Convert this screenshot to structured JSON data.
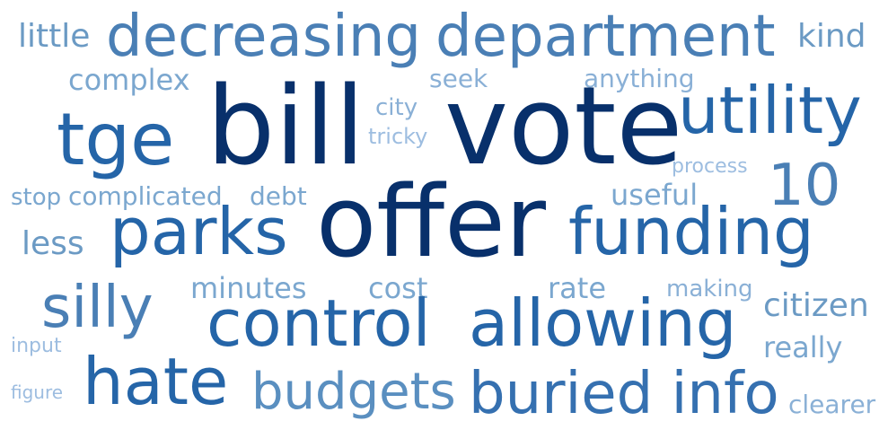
{
  "chart_data": {
    "type": "wordcloud",
    "words": [
      "little",
      "decreasing",
      "department",
      "kind",
      "complex",
      "seek",
      "anything",
      "bill",
      "vote",
      "utility",
      "tge",
      "city",
      "tricky",
      "process",
      "10",
      "stop",
      "complicated",
      "debt",
      "useful",
      "offer",
      "parks",
      "funding",
      "less",
      "silly",
      "minutes",
      "cost",
      "rate",
      "making",
      "control",
      "allowing",
      "citizen",
      "input",
      "really",
      "hate",
      "budgets",
      "buried info",
      "figure",
      "clearer"
    ]
  }
}
